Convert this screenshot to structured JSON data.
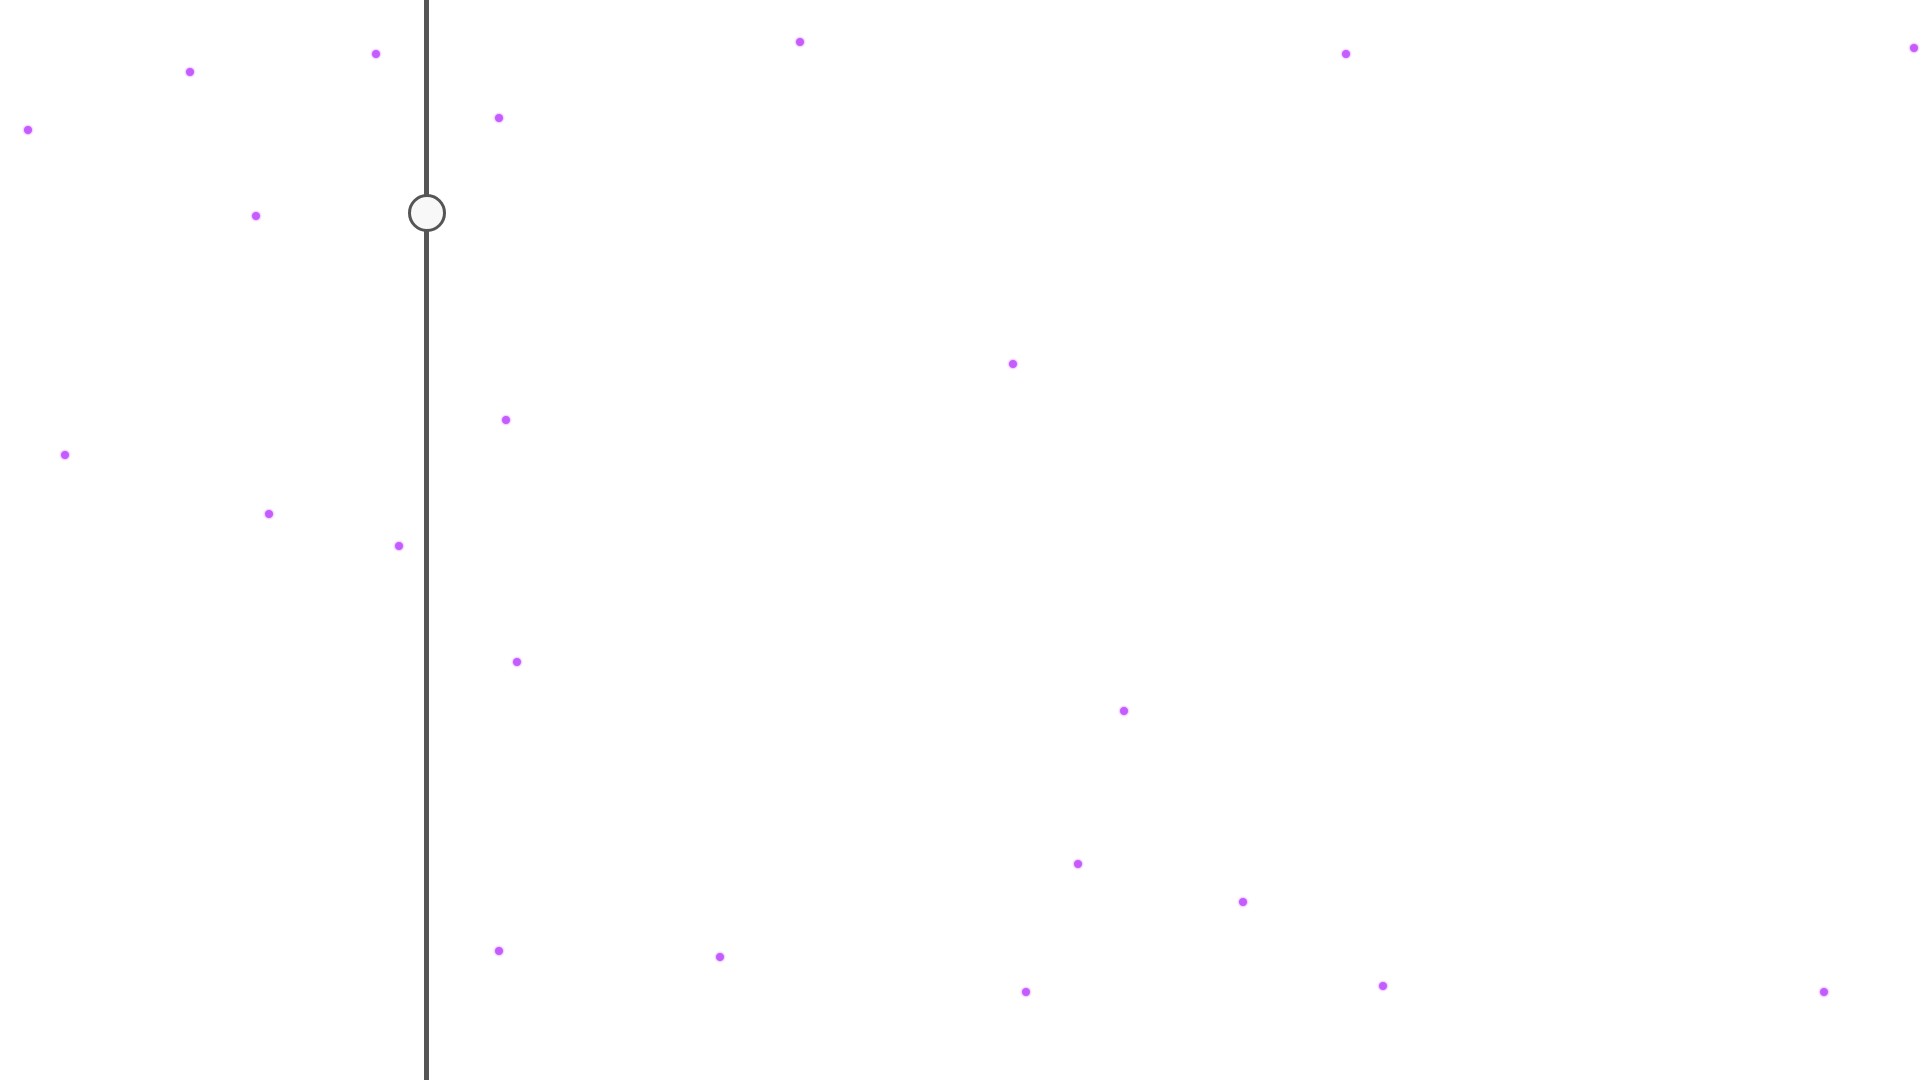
{
  "colors": {
    "background": "#ffffff",
    "divider": "#555555",
    "handle_fill": "#f8f8f8",
    "dot": "#c45cff"
  },
  "divider": {
    "icon": "drag-handle-icon"
  },
  "points": [
    {
      "id": "p1"
    },
    {
      "id": "p2"
    },
    {
      "id": "p3"
    },
    {
      "id": "p4"
    },
    {
      "id": "p5"
    },
    {
      "id": "p6"
    },
    {
      "id": "p7"
    },
    {
      "id": "p8"
    },
    {
      "id": "p9"
    },
    {
      "id": "p10"
    },
    {
      "id": "p11"
    },
    {
      "id": "p12"
    },
    {
      "id": "p13"
    },
    {
      "id": "p14"
    },
    {
      "id": "p15"
    },
    {
      "id": "p16"
    },
    {
      "id": "p17"
    },
    {
      "id": "p18"
    },
    {
      "id": "p19"
    },
    {
      "id": "p20"
    },
    {
      "id": "p21"
    },
    {
      "id": "p22"
    },
    {
      "id": "p23"
    },
    {
      "id": "p24"
    }
  ]
}
